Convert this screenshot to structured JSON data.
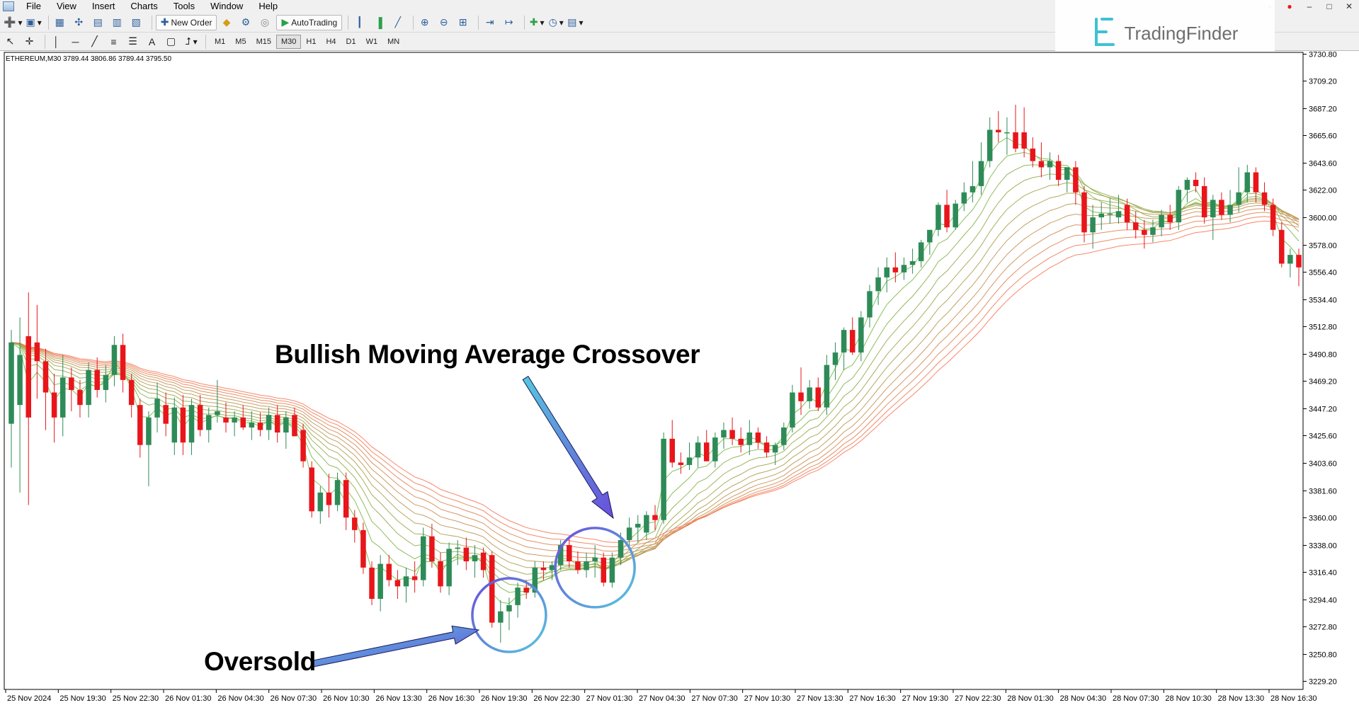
{
  "menu": [
    "File",
    "View",
    "Insert",
    "Charts",
    "Tools",
    "Window",
    "Help"
  ],
  "toolbar": {
    "new_order": "New Order",
    "auto_trading": "AutoTrading"
  },
  "timeframes": [
    "M1",
    "M5",
    "M15",
    "M30",
    "H1",
    "H4",
    "D1",
    "W1",
    "MN"
  ],
  "active_timeframe": "M30",
  "logo": {
    "text": "TradingFinder",
    "color": "#3fc1d3"
  },
  "chart_header": "ETHEREUM,M30  3789.44 3806.86 3789.44 3795.50",
  "annotations": {
    "crossover": "Bullish Moving Average Crossover",
    "oversold": "Oversold"
  },
  "colors": {
    "bull": "#2e8b57",
    "bear": "#e8161a",
    "circle_from": "#6a4ddc",
    "circle_to": "#56c8dc"
  },
  "chart_data": {
    "type": "candlestick",
    "symbol": "ETHEREUM",
    "timeframe": "M30",
    "ohlc_header": {
      "open": 3789.44,
      "high": 3806.86,
      "low": 3789.44,
      "close": 3795.5
    },
    "y_ticks": [
      3730.8,
      3709.2,
      3687.2,
      3665.6,
      3643.6,
      3622.0,
      3600.0,
      3578.0,
      3556.4,
      3534.4,
      3512.8,
      3490.8,
      3469.2,
      3447.2,
      3425.6,
      3403.6,
      3381.6,
      3360.0,
      3338.0,
      3316.4,
      3294.4,
      3272.8,
      3250.8,
      3229.2
    ],
    "ylim": [
      3222.6,
      3731.9
    ],
    "x_ticks": [
      "25 Nov 2024",
      "25 Nov 19:30",
      "25 Nov 22:30",
      "26 Nov 01:30",
      "26 Nov 04:30",
      "26 Nov 07:30",
      "26 Nov 10:30",
      "26 Nov 13:30",
      "26 Nov 16:30",
      "26 Nov 19:30",
      "26 Nov 22:30",
      "27 Nov 01:30",
      "27 Nov 04:30",
      "27 Nov 07:30",
      "27 Nov 10:30",
      "27 Nov 13:30",
      "27 Nov 16:30",
      "27 Nov 19:30",
      "27 Nov 22:30",
      "28 Nov 01:30",
      "28 Nov 04:30",
      "28 Nov 07:30",
      "28 Nov 10:30",
      "28 Nov 13:30",
      "28 Nov 16:30"
    ],
    "ma_ribbon_count": 12,
    "candles": [
      {
        "o": 3435,
        "h": 3510,
        "l": 3400,
        "c": 3500
      },
      {
        "o": 3450,
        "h": 3520,
        "l": 3380,
        "c": 3490
      },
      {
        "o": 3505,
        "h": 3540,
        "l": 3370,
        "c": 3440
      },
      {
        "o": 3500,
        "h": 3530,
        "l": 3455,
        "c": 3485
      },
      {
        "o": 3485,
        "h": 3495,
        "l": 3430,
        "c": 3460
      },
      {
        "o": 3460,
        "h": 3475,
        "l": 3420,
        "c": 3440
      },
      {
        "o": 3440,
        "h": 3490,
        "l": 3425,
        "c": 3472
      },
      {
        "o": 3472,
        "h": 3480,
        "l": 3445,
        "c": 3462
      },
      {
        "o": 3462,
        "h": 3470,
        "l": 3440,
        "c": 3450
      },
      {
        "o": 3450,
        "h": 3484,
        "l": 3440,
        "c": 3478
      },
      {
        "o": 3478,
        "h": 3488,
        "l": 3456,
        "c": 3462
      },
      {
        "o": 3462,
        "h": 3482,
        "l": 3452,
        "c": 3474
      },
      {
        "o": 3474,
        "h": 3505,
        "l": 3465,
        "c": 3498
      },
      {
        "o": 3498,
        "h": 3507,
        "l": 3460,
        "c": 3470
      },
      {
        "o": 3470,
        "h": 3475,
        "l": 3440,
        "c": 3450
      },
      {
        "o": 3450,
        "h": 3455,
        "l": 3408,
        "c": 3418
      },
      {
        "o": 3418,
        "h": 3445,
        "l": 3385,
        "c": 3440
      },
      {
        "o": 3440,
        "h": 3468,
        "l": 3428,
        "c": 3455
      },
      {
        "o": 3450,
        "h": 3460,
        "l": 3425,
        "c": 3435
      },
      {
        "o": 3420,
        "h": 3456,
        "l": 3410,
        "c": 3448
      },
      {
        "o": 3448,
        "h": 3458,
        "l": 3410,
        "c": 3420
      },
      {
        "o": 3420,
        "h": 3455,
        "l": 3410,
        "c": 3450
      },
      {
        "o": 3450,
        "h": 3458,
        "l": 3425,
        "c": 3430
      },
      {
        "o": 3430,
        "h": 3448,
        "l": 3420,
        "c": 3442
      },
      {
        "o": 3442,
        "h": 3470,
        "l": 3436,
        "c": 3445
      },
      {
        "o": 3440,
        "h": 3452,
        "l": 3428,
        "c": 3436
      },
      {
        "o": 3436,
        "h": 3445,
        "l": 3425,
        "c": 3440
      },
      {
        "o": 3440,
        "h": 3450,
        "l": 3430,
        "c": 3432
      },
      {
        "o": 3432,
        "h": 3445,
        "l": 3422,
        "c": 3436
      },
      {
        "o": 3436,
        "h": 3444,
        "l": 3425,
        "c": 3430
      },
      {
        "o": 3430,
        "h": 3448,
        "l": 3422,
        "c": 3442
      },
      {
        "o": 3442,
        "h": 3450,
        "l": 3420,
        "c": 3428
      },
      {
        "o": 3428,
        "h": 3445,
        "l": 3415,
        "c": 3440
      },
      {
        "o": 3442,
        "h": 3448,
        "l": 3426,
        "c": 3425
      },
      {
        "o": 3430,
        "h": 3435,
        "l": 3400,
        "c": 3405
      },
      {
        "o": 3400,
        "h": 3405,
        "l": 3360,
        "c": 3365
      },
      {
        "o": 3365,
        "h": 3385,
        "l": 3355,
        "c": 3380
      },
      {
        "o": 3380,
        "h": 3395,
        "l": 3360,
        "c": 3370
      },
      {
        "o": 3370,
        "h": 3396,
        "l": 3365,
        "c": 3390
      },
      {
        "o": 3390,
        "h": 3396,
        "l": 3350,
        "c": 3360
      },
      {
        "o": 3360,
        "h": 3366,
        "l": 3340,
        "c": 3350
      },
      {
        "o": 3350,
        "h": 3356,
        "l": 3315,
        "c": 3320
      },
      {
        "o": 3320,
        "h": 3325,
        "l": 3290,
        "c": 3295
      },
      {
        "o": 3295,
        "h": 3330,
        "l": 3285,
        "c": 3323
      },
      {
        "o": 3323,
        "h": 3330,
        "l": 3305,
        "c": 3310
      },
      {
        "o": 3310,
        "h": 3318,
        "l": 3295,
        "c": 3305
      },
      {
        "o": 3305,
        "h": 3320,
        "l": 3292,
        "c": 3313
      },
      {
        "o": 3313,
        "h": 3325,
        "l": 3300,
        "c": 3310
      },
      {
        "o": 3310,
        "h": 3352,
        "l": 3305,
        "c": 3345
      },
      {
        "o": 3345,
        "h": 3355,
        "l": 3320,
        "c": 3325
      },
      {
        "o": 3325,
        "h": 3332,
        "l": 3300,
        "c": 3305
      },
      {
        "o": 3305,
        "h": 3340,
        "l": 3298,
        "c": 3335
      },
      {
        "o": 3335,
        "h": 3342,
        "l": 3322,
        "c": 3336
      },
      {
        "o": 3336,
        "h": 3344,
        "l": 3318,
        "c": 3325
      },
      {
        "o": 3325,
        "h": 3338,
        "l": 3312,
        "c": 3330
      },
      {
        "o": 3332,
        "h": 3336,
        "l": 3312,
        "c": 3318
      },
      {
        "o": 3330,
        "h": 3333,
        "l": 3272,
        "c": 3276
      },
      {
        "o": 3276,
        "h": 3294,
        "l": 3260,
        "c": 3285
      },
      {
        "o": 3285,
        "h": 3296,
        "l": 3270,
        "c": 3290
      },
      {
        "o": 3290,
        "h": 3308,
        "l": 3280,
        "c": 3304
      },
      {
        "o": 3304,
        "h": 3310,
        "l": 3295,
        "c": 3300
      },
      {
        "o": 3300,
        "h": 3325,
        "l": 3296,
        "c": 3320
      },
      {
        "o": 3320,
        "h": 3325,
        "l": 3310,
        "c": 3318
      },
      {
        "o": 3318,
        "h": 3325,
        "l": 3310,
        "c": 3322
      },
      {
        "o": 3322,
        "h": 3342,
        "l": 3318,
        "c": 3338
      },
      {
        "o": 3338,
        "h": 3345,
        "l": 3320,
        "c": 3325
      },
      {
        "o": 3325,
        "h": 3333,
        "l": 3315,
        "c": 3318
      },
      {
        "o": 3318,
        "h": 3332,
        "l": 3312,
        "c": 3325
      },
      {
        "o": 3325,
        "h": 3338,
        "l": 3312,
        "c": 3328
      },
      {
        "o": 3328,
        "h": 3332,
        "l": 3305,
        "c": 3308
      },
      {
        "o": 3308,
        "h": 3332,
        "l": 3304,
        "c": 3328
      },
      {
        "o": 3328,
        "h": 3348,
        "l": 3322,
        "c": 3342
      },
      {
        "o": 3342,
        "h": 3360,
        "l": 3336,
        "c": 3352
      },
      {
        "o": 3352,
        "h": 3362,
        "l": 3340,
        "c": 3355
      },
      {
        "o": 3348,
        "h": 3365,
        "l": 3342,
        "c": 3362
      },
      {
        "o": 3362,
        "h": 3370,
        "l": 3350,
        "c": 3358
      },
      {
        "o": 3358,
        "h": 3428,
        "l": 3355,
        "c": 3423
      },
      {
        "o": 3423,
        "h": 3438,
        "l": 3400,
        "c": 3404
      },
      {
        "o": 3404,
        "h": 3412,
        "l": 3395,
        "c": 3402
      },
      {
        "o": 3402,
        "h": 3420,
        "l": 3398,
        "c": 3408
      },
      {
        "o": 3408,
        "h": 3425,
        "l": 3400,
        "c": 3420
      },
      {
        "o": 3420,
        "h": 3430,
        "l": 3405,
        "c": 3405
      },
      {
        "o": 3405,
        "h": 3428,
        "l": 3400,
        "c": 3424
      },
      {
        "o": 3424,
        "h": 3436,
        "l": 3415,
        "c": 3430
      },
      {
        "o": 3430,
        "h": 3440,
        "l": 3418,
        "c": 3423
      },
      {
        "o": 3423,
        "h": 3432,
        "l": 3412,
        "c": 3418
      },
      {
        "o": 3418,
        "h": 3438,
        "l": 3410,
        "c": 3428
      },
      {
        "o": 3428,
        "h": 3432,
        "l": 3415,
        "c": 3420
      },
      {
        "o": 3420,
        "h": 3425,
        "l": 3408,
        "c": 3412
      },
      {
        "o": 3412,
        "h": 3420,
        "l": 3402,
        "c": 3418
      },
      {
        "o": 3418,
        "h": 3436,
        "l": 3414,
        "c": 3432
      },
      {
        "o": 3432,
        "h": 3466,
        "l": 3428,
        "c": 3460
      },
      {
        "o": 3460,
        "h": 3480,
        "l": 3442,
        "c": 3453
      },
      {
        "o": 3453,
        "h": 3470,
        "l": 3447,
        "c": 3464
      },
      {
        "o": 3464,
        "h": 3472,
        "l": 3445,
        "c": 3448
      },
      {
        "o": 3448,
        "h": 3490,
        "l": 3442,
        "c": 3482
      },
      {
        "o": 3482,
        "h": 3500,
        "l": 3470,
        "c": 3492
      },
      {
        "o": 3492,
        "h": 3512,
        "l": 3478,
        "c": 3510
      },
      {
        "o": 3510,
        "h": 3520,
        "l": 3490,
        "c": 3492
      },
      {
        "o": 3492,
        "h": 3525,
        "l": 3485,
        "c": 3520
      },
      {
        "o": 3520,
        "h": 3546,
        "l": 3512,
        "c": 3541
      },
      {
        "o": 3541,
        "h": 3560,
        "l": 3530,
        "c": 3552
      },
      {
        "o": 3552,
        "h": 3568,
        "l": 3540,
        "c": 3560
      },
      {
        "o": 3560,
        "h": 3572,
        "l": 3548,
        "c": 3556
      },
      {
        "o": 3556,
        "h": 3568,
        "l": 3550,
        "c": 3562
      },
      {
        "o": 3562,
        "h": 3575,
        "l": 3555,
        "c": 3565
      },
      {
        "o": 3565,
        "h": 3582,
        "l": 3560,
        "c": 3580
      },
      {
        "o": 3580,
        "h": 3590,
        "l": 3570,
        "c": 3590
      },
      {
        "o": 3590,
        "h": 3612,
        "l": 3585,
        "c": 3610
      },
      {
        "o": 3610,
        "h": 3622,
        "l": 3588,
        "c": 3592
      },
      {
        "o": 3592,
        "h": 3614,
        "l": 3590,
        "c": 3611
      },
      {
        "o": 3611,
        "h": 3628,
        "l": 3605,
        "c": 3620
      },
      {
        "o": 3620,
        "h": 3645,
        "l": 3612,
        "c": 3625
      },
      {
        "o": 3625,
        "h": 3660,
        "l": 3618,
        "c": 3645
      },
      {
        "o": 3645,
        "h": 3680,
        "l": 3640,
        "c": 3670
      },
      {
        "o": 3670,
        "h": 3685,
        "l": 3660,
        "c": 3668
      },
      {
        "o": 3668,
        "h": 3680,
        "l": 3650,
        "c": 3668
      },
      {
        "o": 3668,
        "h": 3690,
        "l": 3652,
        "c": 3655
      },
      {
        "o": 3668,
        "h": 3688,
        "l": 3648,
        "c": 3655
      },
      {
        "o": 3655,
        "h": 3664,
        "l": 3640,
        "c": 3645
      },
      {
        "o": 3645,
        "h": 3660,
        "l": 3632,
        "c": 3640
      },
      {
        "o": 3640,
        "h": 3652,
        "l": 3630,
        "c": 3645
      },
      {
        "o": 3645,
        "h": 3650,
        "l": 3625,
        "c": 3630
      },
      {
        "o": 3630,
        "h": 3640,
        "l": 3620,
        "c": 3640
      },
      {
        "o": 3640,
        "h": 3645,
        "l": 3610,
        "c": 3620
      },
      {
        "o": 3620,
        "h": 3625,
        "l": 3580,
        "c": 3588
      },
      {
        "o": 3588,
        "h": 3610,
        "l": 3575,
        "c": 3600
      },
      {
        "o": 3600,
        "h": 3612,
        "l": 3590,
        "c": 3603
      },
      {
        "o": 3603,
        "h": 3615,
        "l": 3595,
        "c": 3603
      },
      {
        "o": 3600,
        "h": 3618,
        "l": 3595,
        "c": 3605
      },
      {
        "o": 3610,
        "h": 3615,
        "l": 3590,
        "c": 3596
      },
      {
        "o": 3596,
        "h": 3605,
        "l": 3583,
        "c": 3590
      },
      {
        "o": 3590,
        "h": 3598,
        "l": 3575,
        "c": 3586
      },
      {
        "o": 3586,
        "h": 3598,
        "l": 3580,
        "c": 3592
      },
      {
        "o": 3592,
        "h": 3606,
        "l": 3585,
        "c": 3602
      },
      {
        "o": 3602,
        "h": 3610,
        "l": 3590,
        "c": 3596
      },
      {
        "o": 3596,
        "h": 3625,
        "l": 3590,
        "c": 3622
      },
      {
        "o": 3622,
        "h": 3632,
        "l": 3612,
        "c": 3630
      },
      {
        "o": 3630,
        "h": 3636,
        "l": 3620,
        "c": 3625
      },
      {
        "o": 3625,
        "h": 3632,
        "l": 3595,
        "c": 3600
      },
      {
        "o": 3600,
        "h": 3618,
        "l": 3582,
        "c": 3614
      },
      {
        "o": 3614,
        "h": 3620,
        "l": 3598,
        "c": 3602
      },
      {
        "o": 3602,
        "h": 3622,
        "l": 3596,
        "c": 3610
      },
      {
        "o": 3610,
        "h": 3640,
        "l": 3604,
        "c": 3620
      },
      {
        "o": 3620,
        "h": 3642,
        "l": 3612,
        "c": 3636
      },
      {
        "o": 3636,
        "h": 3640,
        "l": 3612,
        "c": 3620
      },
      {
        "o": 3620,
        "h": 3628,
        "l": 3605,
        "c": 3610
      },
      {
        "o": 3610,
        "h": 3615,
        "l": 3585,
        "c": 3590
      },
      {
        "o": 3590,
        "h": 3596,
        "l": 3560,
        "c": 3563
      },
      {
        "o": 3563,
        "h": 3575,
        "l": 3552,
        "c": 3570
      },
      {
        "o": 3570,
        "h": 3575,
        "l": 3545,
        "c": 3560
      }
    ]
  }
}
